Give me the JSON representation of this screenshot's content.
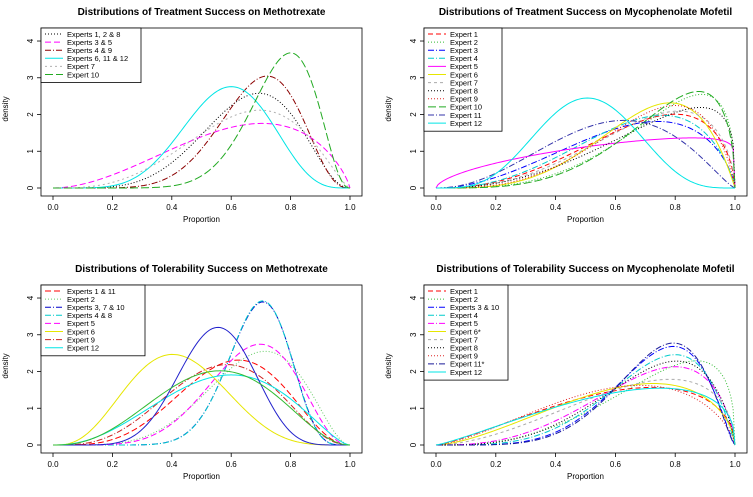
{
  "figure": {
    "ylabel": "density",
    "xlabel": "Proportion"
  },
  "chart_data": [
    {
      "type": "line",
      "title": "Distributions of Treatment Success on Methotrexate",
      "xlabel": "Proportion",
      "ylabel": "density",
      "xlim": [
        0,
        1
      ],
      "ylim": [
        0,
        4.3
      ],
      "x_ticks": [
        "0.0",
        "0.2",
        "0.4",
        "0.6",
        "0.8",
        "1.0"
      ],
      "y_ticks": [
        "0",
        "1",
        "2",
        "3",
        "4"
      ],
      "legend_position": "top-left",
      "series": [
        {
          "name": "Experts 1, 2 & 8",
          "color": "#000000",
          "dash": "1,2",
          "a": 6.2,
          "b": 3.3
        },
        {
          "name": "Experts 3 & 5",
          "color": "#ff00ff",
          "dash": "6,3",
          "a": 2.9,
          "b": 1.8
        },
        {
          "name": "Experts 4 & 9",
          "color": "#8b0000",
          "dash": "6,2,1,2",
          "a": 8.5,
          "b": 3.9
        },
        {
          "name": "Experts 6, 11 & 12",
          "color": "#00e5e5",
          "dash": "",
          "a": 7.0,
          "b": 5.0
        },
        {
          "name": "Expert 7",
          "color": "#b0b0b0",
          "dash": "2,3",
          "a": 4.2,
          "b": 2.4
        },
        {
          "name": "Expert 10",
          "color": "#22aa22",
          "dash": "8,3",
          "a": 11.0,
          "b": 3.5
        }
      ]
    },
    {
      "type": "line",
      "title": "Distributions of Treatment Success on Mycophenolate Mofetil",
      "xlabel": "Proportion",
      "ylabel": "density",
      "xlim": [
        0,
        1
      ],
      "ylim": [
        0,
        4.3
      ],
      "x_ticks": [
        "0.0",
        "0.2",
        "0.4",
        "0.6",
        "0.8",
        "1.0"
      ],
      "y_ticks": [
        "0",
        "1",
        "2",
        "3",
        "4"
      ],
      "legend_position": "top-left",
      "series": [
        {
          "name": "Expert 1",
          "color": "#ff0000",
          "dash": "5,3",
          "a": 3.4,
          "b": 1.6
        },
        {
          "name": "Expert 2",
          "color": "#33bb33",
          "dash": "1,2",
          "a": 4.2,
          "b": 1.4
        },
        {
          "name": "Expert 3",
          "color": "#0000ff",
          "dash": "6,2,1,2",
          "a": 3.0,
          "b": 1.7
        },
        {
          "name": "Expert 4",
          "color": "#00cccc",
          "dash": "6,2,1,2",
          "a": 3.5,
          "b": 1.8
        },
        {
          "name": "Expert 5",
          "color": "#ff00ff",
          "dash": "",
          "a": 1.6,
          "b": 1.1
        },
        {
          "name": "Expert 6",
          "color": "#e6e600",
          "dash": "",
          "a": 4.6,
          "b": 2.0
        },
        {
          "name": "Expert 7",
          "color": "#aaaaaa",
          "dash": "3,3",
          "a": 3.6,
          "b": 1.6
        },
        {
          "name": "Expert 8",
          "color": "#000000",
          "dash": "1,2",
          "a": 3.3,
          "b": 1.3
        },
        {
          "name": "Expert 9",
          "color": "#dd2222",
          "dash": "1,2",
          "a": 4.2,
          "b": 1.8
        },
        {
          "name": "Expert 10",
          "color": "#22aa22",
          "dash": "8,3",
          "a": 4.6,
          "b": 1.5
        },
        {
          "name": "Expert 11",
          "color": "#3333aa",
          "dash": "6,2,1,2",
          "a": 3.2,
          "b": 2.3
        },
        {
          "name": "Expert 12",
          "color": "#00e5e5",
          "dash": "",
          "a": 5.0,
          "b": 4.9
        }
      ]
    },
    {
      "type": "line",
      "title": "Distributions of Tolerability Success on Methotrexate",
      "xlabel": "Proportion",
      "ylabel": "density",
      "xlim": [
        0,
        1
      ],
      "ylim": [
        0,
        4.3
      ],
      "x_ticks": [
        "0.0",
        "0.2",
        "0.4",
        "0.6",
        "0.8",
        "1.0"
      ],
      "y_ticks": [
        "0",
        "1",
        "2",
        "3",
        "4"
      ],
      "legend_position": "top-left",
      "series": [
        {
          "name": "Experts 1 & 11",
          "color": "#ff0000",
          "dash": "6,3",
          "a": 5.0,
          "b": 3.4
        },
        {
          "name": "Expert 2",
          "color": "#66cc66",
          "dash": "1,2",
          "a": 6.0,
          "b": 3.0
        },
        {
          "name": "Experts 3, 7 & 10",
          "color": "#0000cc",
          "dash": "6,2,1,2",
          "a": 14.0,
          "b": 6.4
        },
        {
          "name": "Experts 4 & 8",
          "color": "#00cccc",
          "dash": "6,2,1,2",
          "a": 14.2,
          "b": 6.5
        },
        {
          "name": "Expert 5",
          "color": "#ff00ff",
          "dash": "6,3",
          "a": 7.0,
          "b": 3.6
        },
        {
          "name": "Expert 6",
          "color": "#e6e600",
          "dash": "",
          "a": 4.1,
          "b": 5.6
        },
        {
          "name": "Expert 9",
          "color": "#cc2222",
          "dash": "6,2,1,2",
          "a": 4.4,
          "b": 3.4
        },
        {
          "name": "Expert 12",
          "color": "#00e5e5",
          "dash": "",
          "a": 3.4,
          "b": 2.6
        },
        {
          "name": "",
          "color": "#2222cc",
          "dash": "",
          "a": 9.0,
          "b": 7.4
        },
        {
          "name": "",
          "color": "#33bb33",
          "dash": "",
          "a": 3.7,
          "b": 3.1
        }
      ]
    },
    {
      "type": "line",
      "title": "Distributions of Tolerability Success on Mycophenolate Mofetil",
      "xlabel": "Proportion",
      "ylabel": "density",
      "xlim": [
        0,
        1
      ],
      "ylim": [
        0,
        4.3
      ],
      "x_ticks": [
        "0.0",
        "0.2",
        "0.4",
        "0.6",
        "0.8",
        "1.0"
      ],
      "y_ticks": [
        "0",
        "1",
        "2",
        "3",
        "4"
      ],
      "legend_position": "top-left",
      "series": [
        {
          "name": "Expert 1",
          "color": "#ff0000",
          "dash": "5,3",
          "a": 2.3,
          "b": 1.5
        },
        {
          "name": "Expert 2",
          "color": "#33bb33",
          "dash": "1,2",
          "a": 3.7,
          "b": 1.4
        },
        {
          "name": "Experts 3 & 10",
          "color": "#0000ff",
          "dash": "6,2,1,2",
          "a": 6.0,
          "b": 2.3
        },
        {
          "name": "Expert 4",
          "color": "#00cccc",
          "dash": "6,2,1,2",
          "a": 5.0,
          "b": 2.0
        },
        {
          "name": "Expert 5",
          "color": "#ff00ff",
          "dash": "6,2,1,2",
          "a": 3.8,
          "b": 1.7
        },
        {
          "name": "Expert 6*",
          "color": "#e6e600",
          "dash": "",
          "a": 2.6,
          "b": 1.6
        },
        {
          "name": "Expert 7",
          "color": "#aaaaaa",
          "dash": "3,3",
          "a": 2.8,
          "b": 1.5
        },
        {
          "name": "Expert 8",
          "color": "#000000",
          "dash": "1,2",
          "a": 4.3,
          "b": 1.8
        },
        {
          "name": "Expert 9",
          "color": "#dd2222",
          "dash": "1,2",
          "a": 2.5,
          "b": 1.7
        },
        {
          "name": "Expert 11*",
          "color": "#1a1a99",
          "dash": "6,2,1,2",
          "a": 6.4,
          "b": 2.4
        },
        {
          "name": "Expert 12",
          "color": "#00e5e5",
          "dash": "",
          "a": 2.2,
          "b": 1.4
        }
      ]
    }
  ]
}
